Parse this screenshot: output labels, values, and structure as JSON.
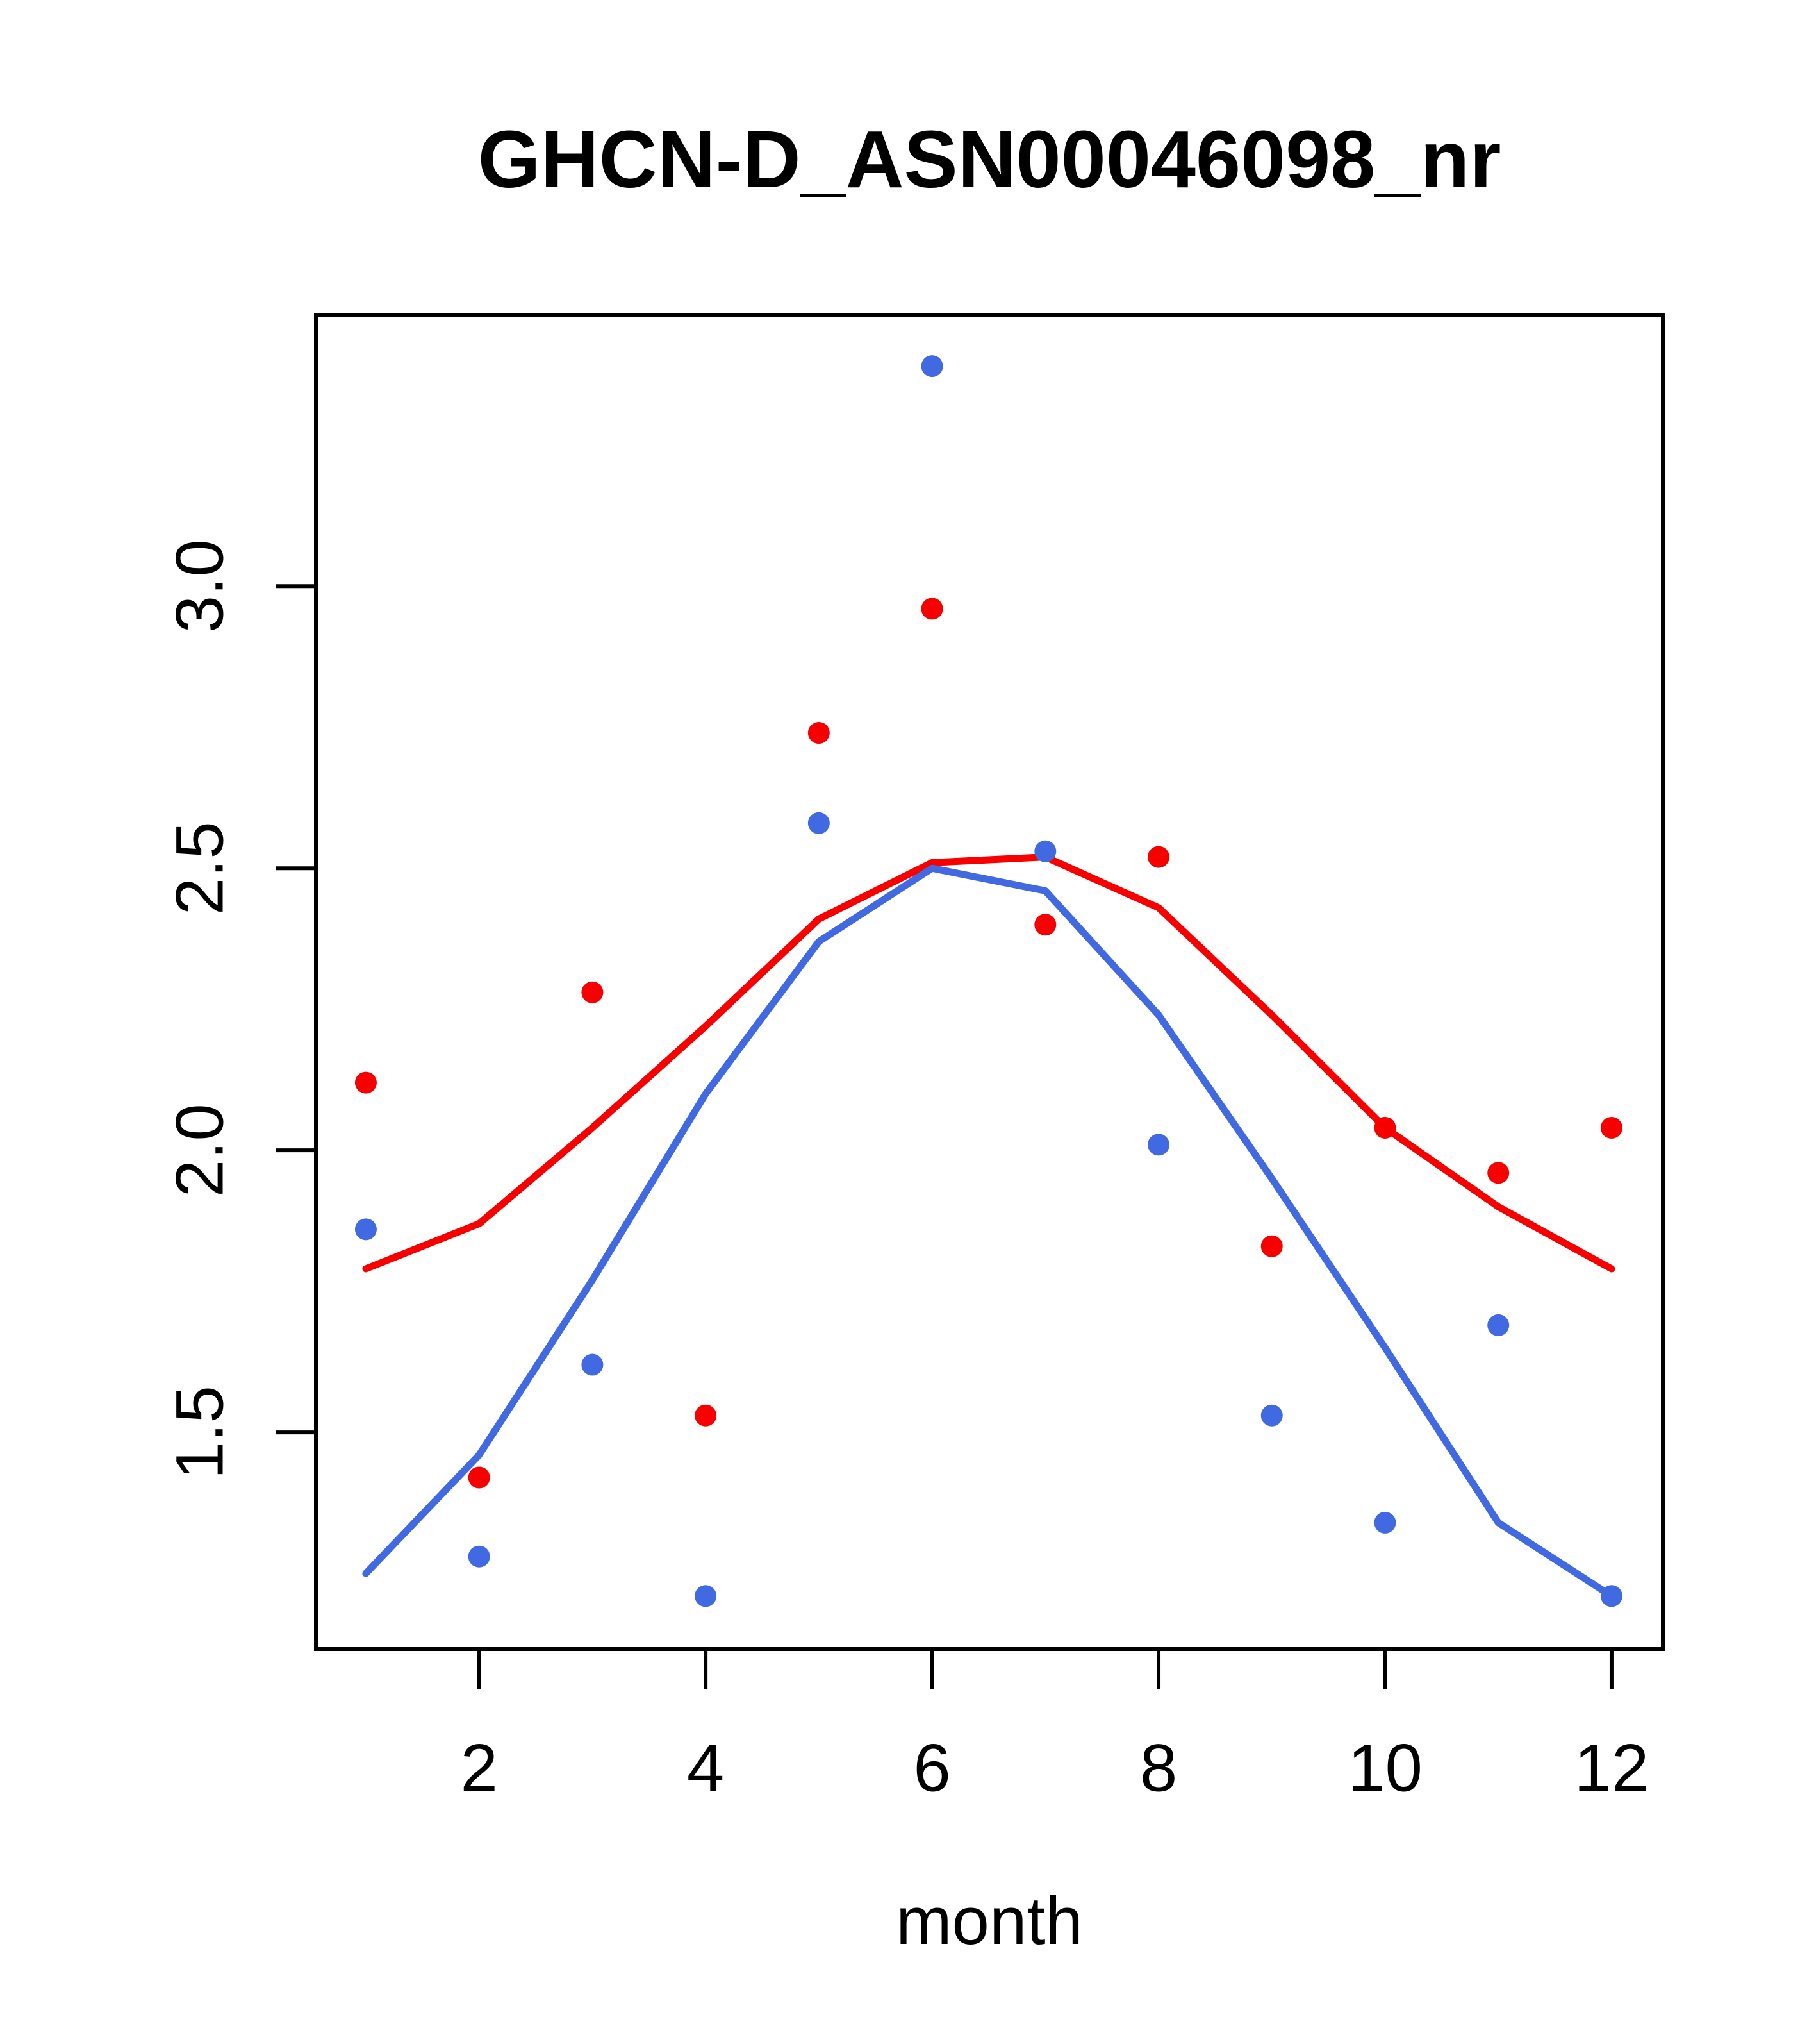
{
  "chart_data": {
    "type": "scatter",
    "title": "GHCN-D_ASN00046098_nr",
    "xlabel": "month",
    "ylabel": "",
    "x": [
      1,
      2,
      3,
      4,
      5,
      6,
      7,
      8,
      9,
      10,
      11,
      12
    ],
    "xlim": [
      0.559,
      12.453
    ],
    "ylim": [
      1.116,
      3.481
    ],
    "x_ticks": [
      2,
      4,
      6,
      8,
      10,
      12
    ],
    "x_tick_labels": [
      "2",
      "4",
      "6",
      "8",
      "10",
      "12"
    ],
    "y_ticks": [
      1.5,
      2.0,
      2.5,
      3.0
    ],
    "y_tick_labels": [
      "1.5",
      "2.0",
      "2.5",
      "3.0"
    ],
    "grid": false,
    "legend": null,
    "colors": {
      "red": "#f80000",
      "blue": "#4169e1",
      "axis": "#000000",
      "background": "#ffffff"
    },
    "series": [
      {
        "name": "red points (monthly values)",
        "kind": "scatter",
        "color_key": "red",
        "values": [
          2.12,
          1.42,
          2.28,
          1.53,
          2.74,
          2.96,
          2.4,
          2.52,
          1.83,
          2.04,
          1.96,
          2.04
        ]
      },
      {
        "name": "blue points (monthly values)",
        "kind": "scatter",
        "color_key": "blue",
        "values": [
          1.86,
          1.28,
          1.62,
          1.21,
          2.58,
          3.39,
          2.53,
          2.01,
          1.53,
          1.34,
          1.69,
          1.21
        ]
      },
      {
        "name": "red smooth line",
        "kind": "line",
        "color_key": "red",
        "values": [
          1.79,
          1.87,
          2.04,
          2.22,
          2.41,
          2.51,
          2.52,
          2.43,
          2.24,
          2.04,
          1.9,
          1.79
        ]
      },
      {
        "name": "blue smooth line",
        "kind": "line",
        "color_key": "blue",
        "values": [
          1.25,
          1.46,
          1.77,
          2.1,
          2.37,
          2.5,
          2.46,
          2.24,
          1.95,
          1.65,
          1.34,
          1.21
        ]
      }
    ]
  }
}
